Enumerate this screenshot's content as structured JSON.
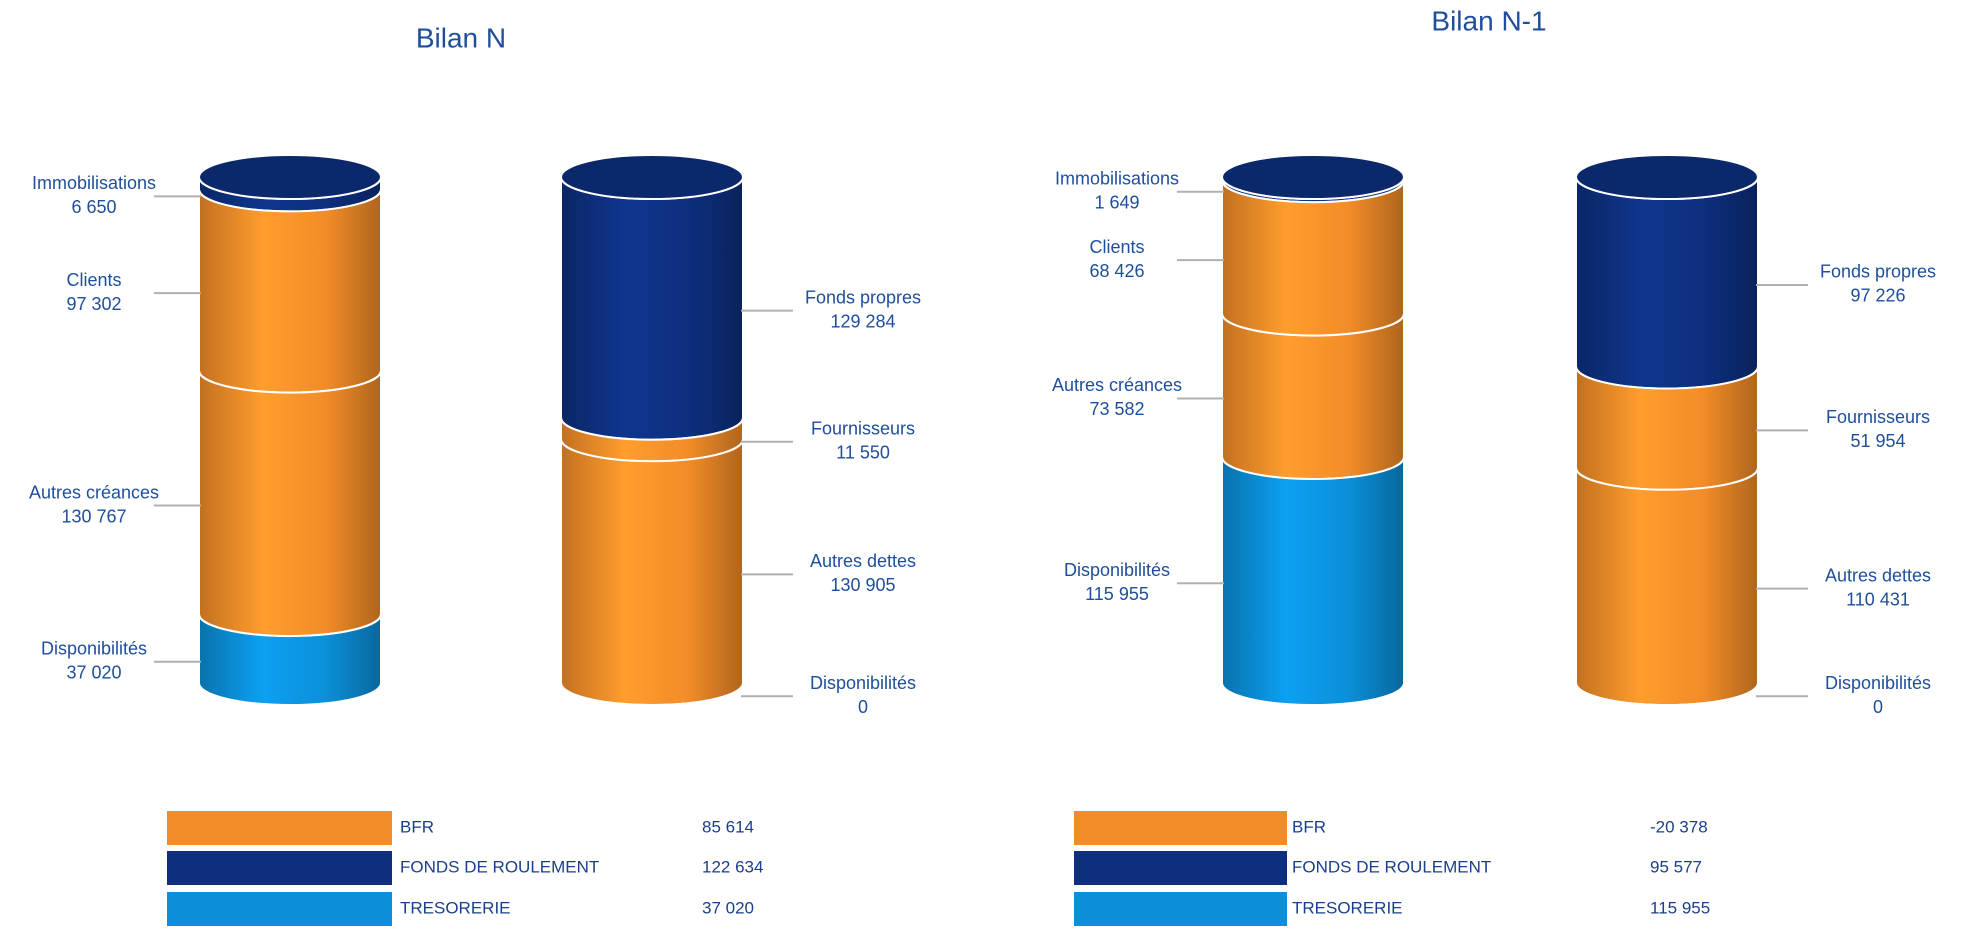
{
  "chart_data": [
    {
      "type": "stacked-cylinder",
      "title": "Bilan N",
      "stacks": [
        {
          "segments": [
            {
              "name": "Immobilisations",
              "value": 6650,
              "value_label": "6 650",
              "color": "#0d2f7e"
            },
            {
              "name": "Clients",
              "value": 97302,
              "value_label": "97 302",
              "color": "#f28c28"
            },
            {
              "name": "Autres créances",
              "value": 130767,
              "value_label": "130 767",
              "color": "#f28c28"
            },
            {
              "name": "Disponibilités",
              "value": 37020,
              "value_label": "37 020",
              "color": "#0b8fd8"
            }
          ]
        },
        {
          "segments": [
            {
              "name": "Fonds propres",
              "value": 129284,
              "value_label": "129 284",
              "color": "#0d2f7e"
            },
            {
              "name": "Fournisseurs",
              "value": 11550,
              "value_label": "11 550",
              "color": "#f28c28"
            },
            {
              "name": "Autres dettes",
              "value": 130905,
              "value_label": "130 905",
              "color": "#f28c28"
            },
            {
              "name": "Disponibilités",
              "value": 0,
              "value_label": "0",
              "color": "#0b8fd8"
            }
          ]
        }
      ],
      "summary": [
        {
          "label": "BFR",
          "amount": "85 614",
          "color": "#f28c28"
        },
        {
          "label": "FONDS DE ROULEMENT",
          "amount": "122 634",
          "color": "#0d2f7e"
        },
        {
          "label": "TRESORERIE",
          "amount": "37 020",
          "color": "#0b8fd8"
        }
      ]
    },
    {
      "type": "stacked-cylinder",
      "title": "Bilan N-1",
      "stacks": [
        {
          "segments": [
            {
              "name": "Immobilisations",
              "value": 1649,
              "value_label": "1 649",
              "color": "#0d2f7e"
            },
            {
              "name": "Clients",
              "value": 68426,
              "value_label": "68 426",
              "color": "#f28c28"
            },
            {
              "name": "Autres créances",
              "value": 73582,
              "value_label": "73 582",
              "color": "#f28c28"
            },
            {
              "name": "Disponibilités",
              "value": 115955,
              "value_label": "115 955",
              "color": "#0b8fd8"
            }
          ]
        },
        {
          "segments": [
            {
              "name": "Fonds propres",
              "value": 97226,
              "value_label": "97 226",
              "color": "#0d2f7e"
            },
            {
              "name": "Fournisseurs",
              "value": 51954,
              "value_label": "51 954",
              "color": "#f28c28"
            },
            {
              "name": "Autres dettes",
              "value": 110431,
              "value_label": "110 431",
              "color": "#f28c28"
            },
            {
              "name": "Disponibilités",
              "value": 0,
              "value_label": "0",
              "color": "#0b8fd8"
            }
          ]
        }
      ],
      "summary": [
        {
          "label": "BFR",
          "amount": "-20 378",
          "color": "#f28c28"
        },
        {
          "label": "FONDS DE ROULEMENT",
          "amount": "95 577",
          "color": "#0d2f7e"
        },
        {
          "label": "TRESORERIE",
          "amount": "115 955",
          "color": "#0b8fd8"
        }
      ]
    }
  ]
}
